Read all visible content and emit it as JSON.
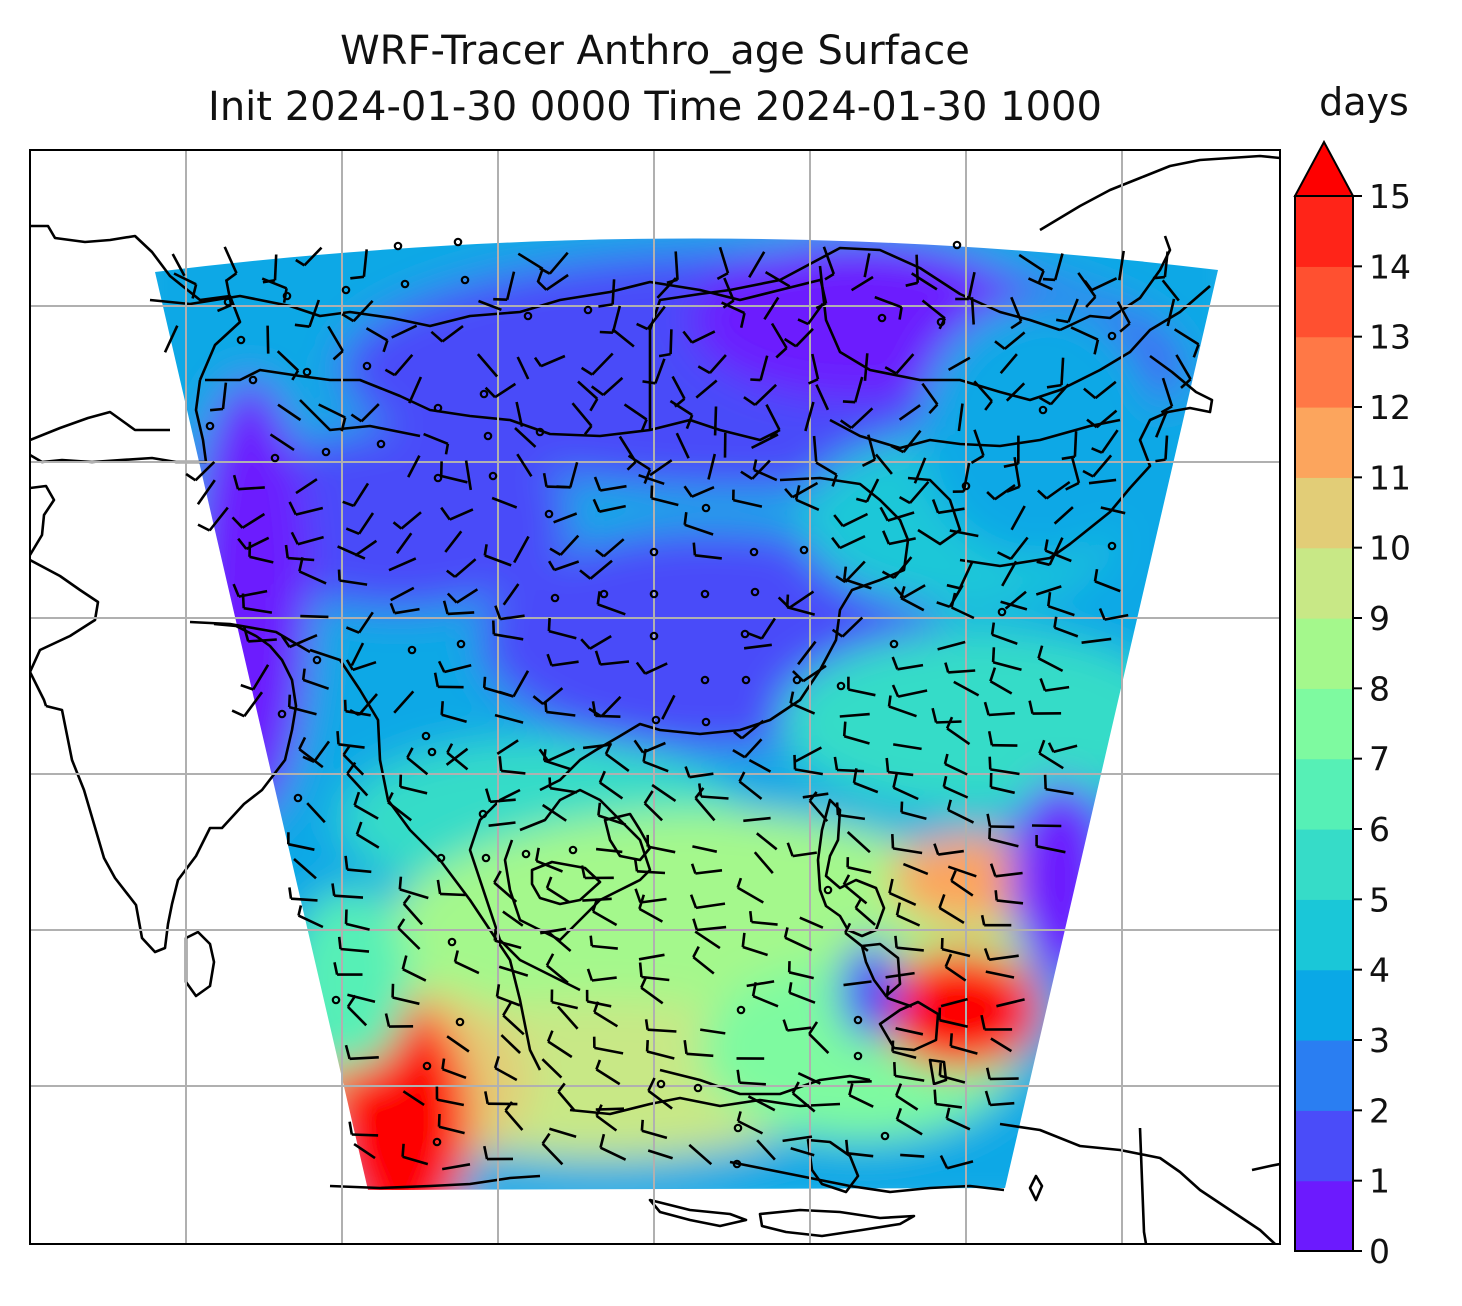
{
  "title": {
    "line1": "WRF-Tracer Anthro_age Surface",
    "line2": "Init 2024-01-30 0000 Time 2024-01-30 1000"
  },
  "colorbar": {
    "units": "days",
    "ticks": [
      "0",
      "1",
      "2",
      "3",
      "4",
      "5",
      "6",
      "7",
      "8",
      "9",
      "10",
      "11",
      "12",
      "13",
      "14",
      "15"
    ],
    "extend": "max",
    "colors": [
      "#6c1afe",
      "#4a4cf9",
      "#2a7ef2",
      "#0aa8e6",
      "#1ac7d8",
      "#36dcc8",
      "#56f0b6",
      "#7efaa0",
      "#a4f88c",
      "#c8e886",
      "#e2cd77",
      "#fca55d",
      "#ff7846",
      "#ff5030",
      "#ff2418",
      "#fe0000"
    ]
  },
  "map": {
    "gridline_color": "#b0b0b0",
    "coastline_color": "#000000",
    "barb_color": "#000000",
    "field": "Anthro_age",
    "level": "Surface"
  }
}
